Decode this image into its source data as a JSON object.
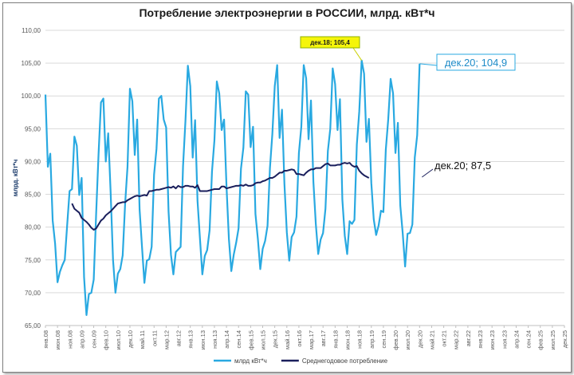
{
  "chart_data": {
    "type": "line",
    "title": "Потребление электроэнергии  в РОССИИ, млрд. кВт*ч",
    "ylabel": "млрд. кВт*ч",
    "xlabel": "",
    "ylim": [
      65,
      110
    ],
    "yticks": [
      "65,00",
      "70,00",
      "75,00",
      "80,00",
      "85,00",
      "90,00",
      "95,00",
      "100,00",
      "105,00",
      "110,00"
    ],
    "x_start": "2008-01",
    "x_end": "2025-12",
    "x_tick_labels": [
      "янв.08",
      "июн.08",
      "ноя.08",
      "апр.09",
      "сен.09",
      "фев.10",
      "июл.10",
      "дек.10",
      "май.11",
      "окт.11",
      "мар.12",
      "авг.12",
      "янв.13",
      "июн.13",
      "ноя.13",
      "апр.14",
      "сен.14",
      "фев.15",
      "июл.15",
      "дек.15",
      "май.16",
      "окт.16",
      "мар.17",
      "авг.17",
      "янв.18",
      "июн.18",
      "ноя.18",
      "апр.19",
      "сен.19",
      "фев.20",
      "июл.20",
      "дек.20",
      "май.21",
      "окт.21",
      "мар.22",
      "авг.22",
      "янв.23",
      "июн.23",
      "ноя.23",
      "апр.24",
      "сен.24",
      "фев.25",
      "июл.25",
      "дек.25"
    ],
    "grid": true,
    "legend_position": "bottom",
    "series": [
      {
        "name": "млрд кВт*ч",
        "color": "#29a9e1",
        "start": "2008-01",
        "values": [
          100.2,
          89.2,
          91.2,
          81.0,
          77.5,
          71.6,
          73.2,
          74.2,
          75.0,
          80.3,
          85.5,
          85.8,
          93.8,
          92.4,
          84.9,
          87.5,
          72.4,
          66.6,
          69.8,
          70.0,
          72.0,
          82.0,
          91.1,
          99.0,
          99.6,
          90.0,
          94.3,
          85.4,
          75.0,
          70.0,
          72.9,
          73.6,
          75.7,
          83.5,
          89.2,
          101.1,
          99.2,
          91.0,
          96.4,
          82.7,
          77.0,
          71.5,
          74.9,
          75.1,
          77.0,
          88.0,
          91.9,
          99.6,
          100.0,
          96.4,
          95.2,
          82.4,
          75.8,
          72.8,
          76.2,
          76.6,
          77.0,
          89.3,
          96.2,
          104.6,
          101.5,
          90.6,
          96.3,
          84.0,
          78.3,
          72.8,
          75.6,
          76.5,
          79.5,
          88.5,
          93.2,
          102.2,
          100.4,
          94.8,
          96.4,
          86.3,
          78.2,
          73.3,
          75.8,
          77.6,
          79.8,
          88.9,
          92.1,
          100.7,
          100.2,
          92.2,
          95.3,
          82.0,
          78.2,
          73.6,
          76.7,
          77.9,
          80.2,
          89.0,
          94.2,
          101.5,
          104.7,
          93.6,
          97.9,
          86.6,
          79.2,
          74.9,
          78.5,
          79.2,
          81.6,
          91.3,
          95.3,
          104.7,
          102.7,
          93.4,
          99.3,
          86.9,
          80.5,
          75.9,
          78.1,
          79.1,
          82.8,
          91.6,
          95.0,
          104.2,
          101.8,
          94.8,
          99.5,
          84.2,
          78.7,
          75.9,
          80.9,
          80.5,
          81.1,
          92.6,
          97.6,
          105.4,
          103.4,
          93.0,
          96.5,
          86.7,
          81.2,
          78.8,
          80.2,
          82.5,
          82.3,
          91.8,
          96.4,
          102.6,
          100.4,
          91.3,
          95.9,
          83.3,
          79.1,
          74.0,
          79.0,
          79.1,
          80.4,
          90.6,
          94.0,
          104.9
        ]
      },
      {
        "name": "Среднегодовое потребление",
        "color": "#1a1f5c",
        "start": "2008-12",
        "values": [
          83.6,
          82.8,
          82.5,
          82.2,
          81.4,
          81.1,
          80.8,
          80.4,
          79.9,
          79.6,
          79.8,
          80.4,
          81.0,
          81.3,
          81.8,
          82.1,
          82.4,
          82.8,
          83.2,
          83.6,
          83.7,
          83.8,
          83.8,
          84.1,
          84.3,
          84.5,
          84.7,
          84.8,
          84.7,
          84.8,
          84.9,
          84.8,
          85.5,
          85.5,
          85.6,
          85.7,
          85.7,
          85.8,
          85.9,
          86.0,
          86.1,
          86.0,
          86.2,
          85.9,
          86.3,
          86.1,
          86.1,
          86.3,
          86.3,
          86.2,
          86.2,
          86.0,
          86.4,
          85.5,
          85.5,
          85.5,
          85.5,
          85.6,
          85.7,
          85.8,
          85.8,
          85.8,
          86.2,
          86.2,
          85.9,
          86.0,
          86.1,
          86.2,
          86.3,
          86.3,
          86.4,
          86.3,
          86.5,
          86.3,
          86.3,
          86.4,
          86.7,
          86.8,
          86.8,
          87.0,
          87.1,
          87.3,
          87.5,
          87.5,
          87.7,
          88.0,
          88.3,
          88.3,
          88.6,
          88.6,
          88.7,
          88.8,
          88.7,
          88.1,
          88.1,
          88.0,
          87.9,
          88.3,
          88.6,
          88.8,
          88.8,
          89.0,
          89.0,
          89.0,
          89.3,
          89.6,
          89.7,
          89.4,
          89.4,
          89.4,
          89.5,
          89.5,
          89.7,
          89.8,
          89.7,
          89.8,
          89.4,
          89.2,
          89.3,
          88.6,
          88.2,
          87.9,
          87.7,
          87.5
        ]
      }
    ],
    "annotations": [
      {
        "text": "дек.18; 105,4",
        "date": "2018-12",
        "value": 105.4,
        "style": "yellow-box"
      },
      {
        "text": "дек.20; 104,9",
        "date": "2020-12",
        "value": 104.9,
        "style": "blue-box"
      },
      {
        "text": "дек.20; 87,5",
        "date": "2020-12",
        "value": 87.5,
        "style": "plain"
      }
    ]
  }
}
